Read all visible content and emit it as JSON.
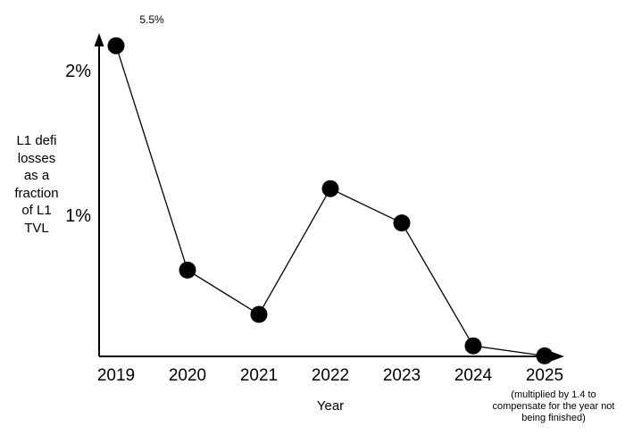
{
  "figure": {
    "background_color": "#ffffff",
    "ink_color": "#000000"
  },
  "chart_data": {
    "type": "line",
    "title": "",
    "xlabel": "Year",
    "ylabel": "L1 defi losses as a fraction of L1 TVL",
    "ylabel_lines": [
      "L1 defi",
      "losses",
      "as a",
      "fraction",
      "of L1",
      "TVL"
    ],
    "x_tick_labels": [
      "2019",
      "2020",
      "2021",
      "2022",
      "2023",
      "2024",
      "2025"
    ],
    "y_tick_labels": [
      "2%",
      "1%"
    ],
    "y_tick_percents": [
      2,
      1
    ],
    "ylim_percent": [
      0,
      2.25
    ],
    "grid": false,
    "marker": "filled-circle",
    "legend": "none",
    "series": [
      {
        "name": "L1 defi losses as a fraction of L1 TVL",
        "points": [
          {
            "year": 2019,
            "value_percent": 5.5,
            "plotted_percent": 2.18,
            "clipped": true,
            "annotation": "5.5%"
          },
          {
            "year": 2020,
            "value_percent": 0.61
          },
          {
            "year": 2021,
            "value_percent": 0.3
          },
          {
            "year": 2022,
            "value_percent": 1.18
          },
          {
            "year": 2023,
            "value_percent": 0.94
          },
          {
            "year": 2024,
            "value_percent": 0.08
          },
          {
            "year": 2025,
            "value_percent": 0.01
          }
        ]
      }
    ],
    "footnote": "(multiplied by 1.4 to compensate for the year not being finished)",
    "footnote_lines": [
      "(multiplied by 1.4 to",
      "compensate for the year not",
      "being finished)"
    ]
  }
}
